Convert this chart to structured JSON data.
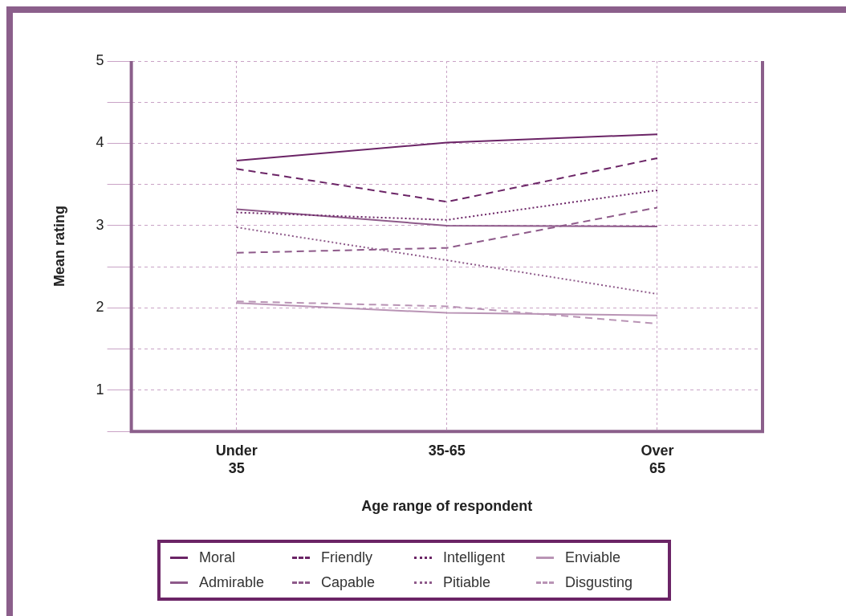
{
  "chart_data": {
    "type": "line",
    "xlabel": "Age range of respondent",
    "ylabel": "Mean rating",
    "categories": [
      "Under 35",
      "35-65",
      "Over 65"
    ],
    "series": [
      {
        "name": "Moral",
        "color": "#6b2466",
        "line_style": "solid",
        "values": [
          3.79,
          4.01,
          4.11
        ]
      },
      {
        "name": "Friendly",
        "color": "#6b2466",
        "line_style": "dashed",
        "values": [
          3.69,
          3.29,
          3.82
        ]
      },
      {
        "name": "Intelligent",
        "color": "#6b2466",
        "line_style": "dotted",
        "values": [
          3.16,
          3.07,
          3.43
        ]
      },
      {
        "name": "Enviable",
        "color": "#b994b5",
        "line_style": "solid",
        "values": [
          2.06,
          1.94,
          1.91
        ]
      },
      {
        "name": "Admirable",
        "color": "#8e5a8a",
        "line_style": "solid",
        "values": [
          3.2,
          3.0,
          2.99
        ]
      },
      {
        "name": "Capable",
        "color": "#8e5a8a",
        "line_style": "dashed",
        "values": [
          2.67,
          2.73,
          3.22
        ]
      },
      {
        "name": "Pitiable",
        "color": "#8e5a8a",
        "line_style": "dotted",
        "values": [
          2.98,
          2.58,
          2.17
        ]
      },
      {
        "name": "Disgusting",
        "color": "#b994b5",
        "line_style": "dashed",
        "values": [
          2.08,
          2.02,
          1.81
        ]
      }
    ],
    "ylim": [
      0.5,
      5
    ],
    "yticks": [
      {
        "value": 0.5,
        "label": null
      },
      1,
      {
        "value": 1.5,
        "label": null
      },
      2,
      {
        "value": 2.5,
        "label": null
      },
      3,
      {
        "value": 3.5,
        "label": null
      },
      4,
      {
        "value": 4.5,
        "label": null
      },
      5
    ],
    "grid": true,
    "legend": "bottom",
    "marker": "none"
  }
}
